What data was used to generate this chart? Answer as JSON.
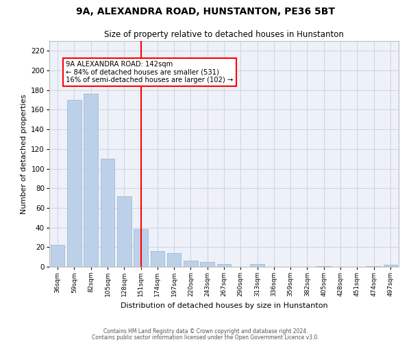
{
  "title": "9A, ALEXANDRA ROAD, HUNSTANTON, PE36 5BT",
  "subtitle": "Size of property relative to detached houses in Hunstanton",
  "xlabel": "Distribution of detached houses by size in Hunstanton",
  "ylabel": "Number of detached properties",
  "bar_color": "#bdd0e9",
  "bar_edge_color": "#a8bfd8",
  "categories": [
    "36sqm",
    "59sqm",
    "82sqm",
    "105sqm",
    "128sqm",
    "151sqm",
    "174sqm",
    "197sqm",
    "220sqm",
    "243sqm",
    "267sqm",
    "290sqm",
    "313sqm",
    "336sqm",
    "359sqm",
    "382sqm",
    "405sqm",
    "428sqm",
    "451sqm",
    "474sqm",
    "497sqm"
  ],
  "values": [
    22,
    170,
    176,
    110,
    72,
    38,
    16,
    14,
    6,
    5,
    3,
    0,
    3,
    0,
    0,
    0,
    1,
    0,
    0,
    1,
    2
  ],
  "ylim": [
    0,
    230
  ],
  "yticks": [
    0,
    20,
    40,
    60,
    80,
    100,
    120,
    140,
    160,
    180,
    200,
    220
  ],
  "property_line_x": 5.0,
  "property_line_label": "9A ALEXANDRA ROAD: 142sqm",
  "annotation_line1": "← 84% of detached houses are smaller (531)",
  "annotation_line2": "16% of semi-detached houses are larger (102) →",
  "footnote1": "Contains HM Land Registry data © Crown copyright and database right 2024.",
  "footnote2": "Contains public sector information licensed under the Open Government Licence v3.0.",
  "grid_color": "#ccd6e8",
  "background_color": "#eef2f8"
}
